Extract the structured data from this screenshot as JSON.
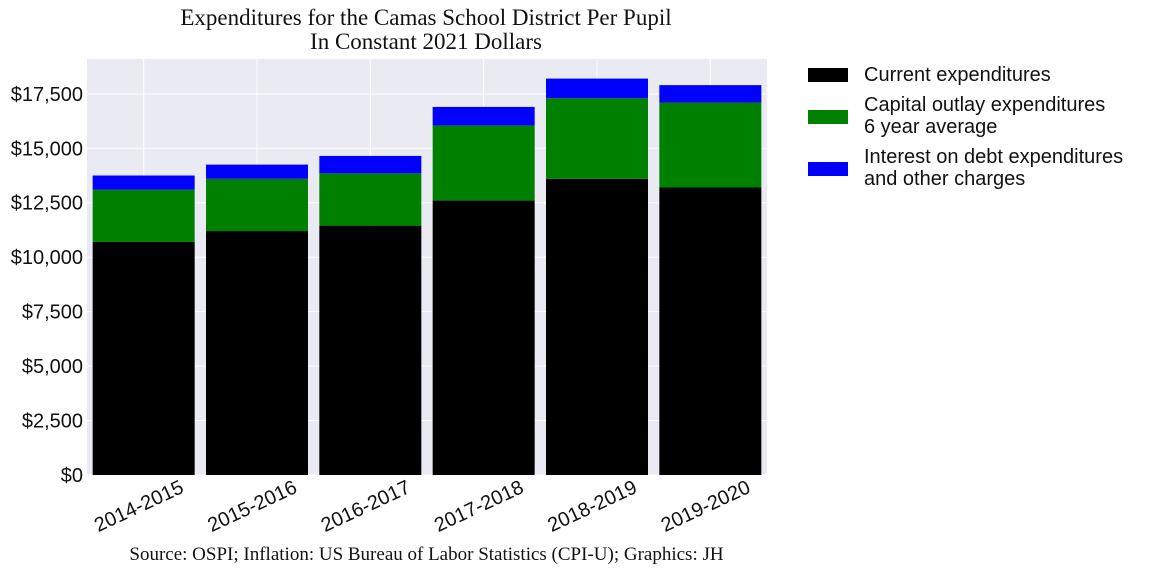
{
  "chart_data": {
    "type": "bar",
    "stacked": true,
    "title": [
      "Expenditures for the Camas School District Per Pupil",
      "In Constant 2021 Dollars"
    ],
    "categories": [
      "2014-2015",
      "2015-2016",
      "2016-2017",
      "2017-2018",
      "2018-2019",
      "2019-2020"
    ],
    "series": [
      {
        "name": [
          "Current expenditures"
        ],
        "color": "#000000",
        "values": [
          10700,
          11200,
          11450,
          12600,
          13600,
          13200
        ]
      },
      {
        "name": [
          "Capital outlay expenditures",
          "6 year average"
        ],
        "color": "#008000",
        "values": [
          2400,
          2400,
          2400,
          3450,
          3700,
          3900
        ]
      },
      {
        "name": [
          "Interest on debt expenditures",
          "and other charges"
        ],
        "color": "#0000ff",
        "values": [
          650,
          650,
          800,
          850,
          900,
          800
        ]
      }
    ],
    "y_ticks": [
      0,
      2500,
      5000,
      7500,
      10000,
      12500,
      15000,
      17500
    ],
    "y_tick_labels": [
      "$0",
      "$2,500",
      "$5,000",
      "$7,500",
      "$10,000",
      "$12,500",
      "$15,000",
      "$17,500"
    ],
    "ylim": [
      0,
      19100
    ],
    "grid": true,
    "legend_position": "outside-right",
    "xlabel": "",
    "ylabel": "",
    "source": "Source: OSPI; Inflation: US Bureau of Labor Statistics (CPI-U); Graphics: JH"
  }
}
